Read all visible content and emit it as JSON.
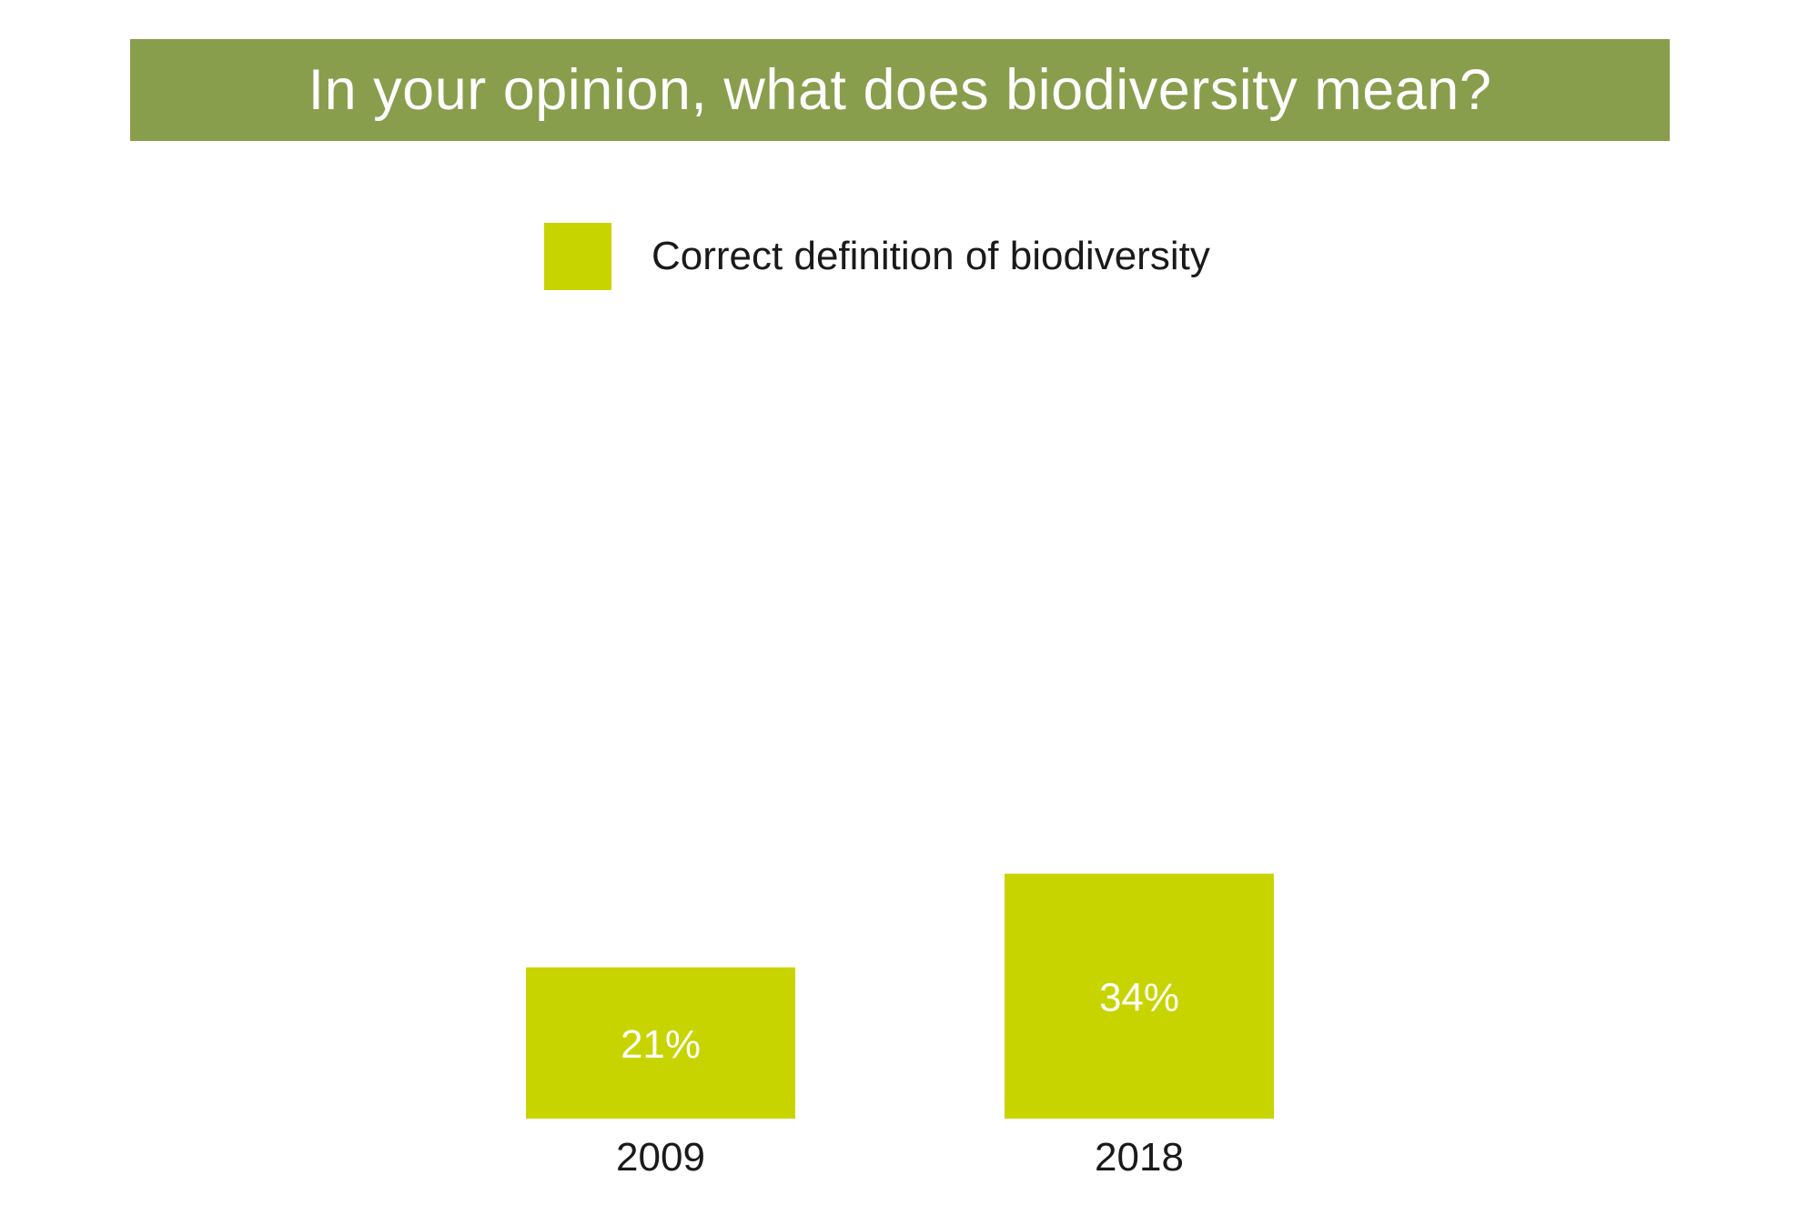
{
  "chart_data": {
    "type": "bar",
    "title": "In your opinion, what does biodiversity mean?",
    "categories": [
      "2009",
      "2018"
    ],
    "series": [
      {
        "name": "Correct definition of biodiversity",
        "values": [
          21,
          34
        ],
        "labels": [
          "21%",
          "34%"
        ]
      }
    ],
    "xlabel": "",
    "ylabel": "",
    "ylim": [
      0,
      100
    ],
    "legend": "top-center",
    "grid": false
  },
  "colors": {
    "title_background": "#889e4d",
    "bar": "#c8d400",
    "bar_label": "#ffffff",
    "category_label": "#1a1a1a"
  }
}
